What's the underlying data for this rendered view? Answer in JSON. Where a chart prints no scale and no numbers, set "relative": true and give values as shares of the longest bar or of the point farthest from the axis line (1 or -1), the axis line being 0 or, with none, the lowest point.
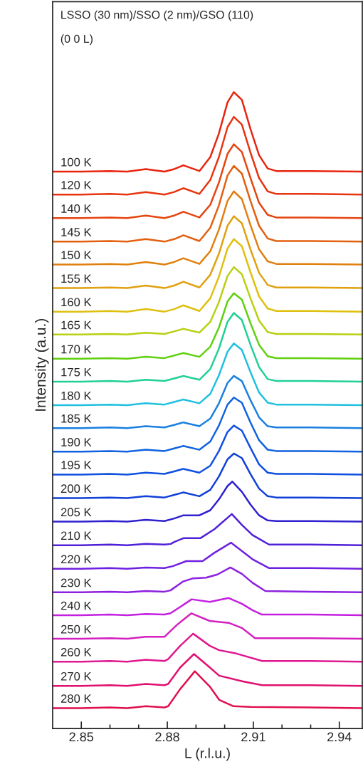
{
  "chart_data": {
    "type": "line",
    "relative": true,
    "title": "LSSO (30 nm)/SSO (2 nm)/GSO (110)",
    "subtitle": "(0 0 L)",
    "xlabel": "L (r.l.u.)",
    "ylabel": "Intensity (a.u.)",
    "xlim": [
      2.84,
      2.948
    ],
    "xticks": [
      2.85,
      {
        "value": 2.86,
        "label": null
      },
      {
        "value": 2.87,
        "label": null
      },
      2.88,
      {
        "value": 2.89,
        "label": null
      },
      {
        "value": 2.9,
        "label": null
      },
      2.91,
      {
        "value": 2.92,
        "label": null
      },
      {
        "value": 2.93,
        "label": null
      },
      2.94
    ],
    "grid": false,
    "line_style": "solid",
    "marker": "none",
    "series": [
      {
        "name": "100 K",
        "color": "#e8250f",
        "x": [
          2.84,
          2.85,
          2.86,
          2.866,
          2.8725,
          2.879,
          2.8824,
          2.8856,
          2.8912,
          2.895,
          2.898,
          2.901,
          2.9032,
          2.906,
          2.909,
          2.912,
          2.915,
          2.918,
          2.93,
          2.948
        ],
        "values": [
          0.875,
          0.875,
          0.876,
          0.875,
          0.879,
          0.875,
          0.879,
          0.885,
          0.876,
          0.898,
          0.935,
          0.984,
          1.0,
          0.988,
          0.942,
          0.901,
          0.88,
          0.876,
          0.876,
          0.875
        ]
      },
      {
        "name": "120 K",
        "color": "#e63510",
        "x": [
          2.84,
          2.85,
          2.86,
          2.866,
          2.8725,
          2.879,
          2.8824,
          2.8856,
          2.8912,
          2.895,
          2.898,
          2.901,
          2.9032,
          2.906,
          2.909,
          2.912,
          2.915,
          2.918,
          2.93,
          2.948
        ],
        "values": [
          0.839,
          0.839,
          0.84,
          0.839,
          0.843,
          0.839,
          0.843,
          0.849,
          0.84,
          0.862,
          0.898,
          0.945,
          0.961,
          0.949,
          0.905,
          0.865,
          0.844,
          0.84,
          0.84,
          0.839
        ]
      },
      {
        "name": "140 K",
        "color": "#e54510",
        "x": [
          2.84,
          2.85,
          2.86,
          2.866,
          2.8725,
          2.879,
          2.8824,
          2.8856,
          2.8912,
          2.895,
          2.898,
          2.901,
          2.9032,
          2.906,
          2.909,
          2.912,
          2.915,
          2.918,
          2.93,
          2.948
        ],
        "values": [
          0.802,
          0.802,
          0.803,
          0.802,
          0.806,
          0.802,
          0.806,
          0.812,
          0.803,
          0.823,
          0.858,
          0.903,
          0.918,
          0.906,
          0.865,
          0.826,
          0.807,
          0.803,
          0.803,
          0.802
        ]
      },
      {
        "name": "145 K",
        "color": "#e2600f",
        "x": [
          2.84,
          2.85,
          2.86,
          2.866,
          2.8725,
          2.879,
          2.8824,
          2.8856,
          2.8912,
          2.895,
          2.898,
          2.901,
          2.9032,
          2.906,
          2.909,
          2.912,
          2.915,
          2.918,
          2.93,
          2.948
        ],
        "values": [
          0.765,
          0.765,
          0.766,
          0.765,
          0.769,
          0.765,
          0.769,
          0.775,
          0.766,
          0.787,
          0.822,
          0.869,
          0.884,
          0.872,
          0.829,
          0.79,
          0.77,
          0.766,
          0.766,
          0.765
        ]
      },
      {
        "name": "150 K",
        "color": "#e0800f",
        "x": [
          2.84,
          2.85,
          2.86,
          2.866,
          2.8725,
          2.879,
          2.8824,
          2.8856,
          2.8912,
          2.895,
          2.898,
          2.901,
          2.9032,
          2.906,
          2.909,
          2.912,
          2.915,
          2.918,
          2.93,
          2.948
        ],
        "values": [
          0.729,
          0.729,
          0.73,
          0.729,
          0.733,
          0.729,
          0.733,
          0.739,
          0.73,
          0.75,
          0.784,
          0.829,
          0.844,
          0.832,
          0.791,
          0.753,
          0.734,
          0.73,
          0.73,
          0.729
        ]
      },
      {
        "name": "155 K",
        "color": "#e0a00f",
        "x": [
          2.84,
          2.85,
          2.86,
          2.866,
          2.8725,
          2.879,
          2.8824,
          2.8856,
          2.8912,
          2.895,
          2.898,
          2.901,
          2.9032,
          2.906,
          2.909,
          2.912,
          2.915,
          2.918,
          2.93,
          2.948
        ],
        "values": [
          0.692,
          0.692,
          0.693,
          0.692,
          0.696,
          0.692,
          0.696,
          0.702,
          0.693,
          0.713,
          0.746,
          0.79,
          0.805,
          0.794,
          0.753,
          0.716,
          0.697,
          0.693,
          0.693,
          0.692
        ]
      },
      {
        "name": "160 K",
        "color": "#dfc010",
        "x": [
          2.84,
          2.85,
          2.86,
          2.866,
          2.8725,
          2.879,
          2.8824,
          2.8856,
          2.8912,
          2.895,
          2.898,
          2.901,
          2.9032,
          2.906,
          2.909,
          2.912,
          2.915,
          2.918,
          2.93,
          2.948
        ],
        "values": [
          0.655,
          0.655,
          0.656,
          0.655,
          0.659,
          0.655,
          0.659,
          0.665,
          0.656,
          0.676,
          0.71,
          0.754,
          0.769,
          0.758,
          0.717,
          0.679,
          0.66,
          0.656,
          0.656,
          0.655
        ]
      },
      {
        "name": "165 K",
        "color": "#b8d010",
        "x": [
          2.84,
          2.85,
          2.86,
          2.866,
          2.8725,
          2.879,
          2.8824,
          2.8856,
          2.8912,
          2.895,
          2.898,
          2.901,
          2.9032,
          2.906,
          2.909,
          2.912,
          2.915,
          2.918,
          2.93,
          2.948
        ],
        "values": [
          0.619,
          0.619,
          0.62,
          0.619,
          0.622,
          0.62,
          0.624,
          0.628,
          0.622,
          0.639,
          0.67,
          0.711,
          0.725,
          0.714,
          0.676,
          0.641,
          0.623,
          0.62,
          0.62,
          0.619
        ]
      },
      {
        "name": "170 K",
        "color": "#60d010",
        "x": [
          2.84,
          2.85,
          2.86,
          2.866,
          2.8725,
          2.879,
          2.8824,
          2.8856,
          2.8912,
          2.895,
          2.898,
          2.901,
          2.9032,
          2.906,
          2.909,
          2.912,
          2.915,
          2.918,
          2.93,
          2.948
        ],
        "values": [
          0.581,
          0.581,
          0.582,
          0.581,
          0.584,
          0.582,
          0.586,
          0.59,
          0.584,
          0.6,
          0.63,
          0.671,
          0.684,
          0.674,
          0.637,
          0.603,
          0.585,
          0.582,
          0.582,
          0.581
        ]
      },
      {
        "name": "175 K",
        "color": "#20d098",
        "x": [
          2.84,
          2.85,
          2.86,
          2.866,
          2.8725,
          2.879,
          2.8824,
          2.8856,
          2.8912,
          2.895,
          2.898,
          2.901,
          2.9032,
          2.906,
          2.909,
          2.912,
          2.915,
          2.918,
          2.93,
          2.948
        ],
        "values": [
          0.545,
          0.545,
          0.546,
          0.545,
          0.548,
          0.546,
          0.55,
          0.554,
          0.548,
          0.565,
          0.597,
          0.639,
          0.653,
          0.642,
          0.603,
          0.568,
          0.549,
          0.546,
          0.546,
          0.545
        ]
      },
      {
        "name": "180 K",
        "color": "#20c0e0",
        "x": [
          2.84,
          2.85,
          2.86,
          2.866,
          2.8725,
          2.879,
          2.8824,
          2.8856,
          2.8912,
          2.895,
          2.898,
          2.901,
          2.9032,
          2.906,
          2.909,
          2.912,
          2.915,
          2.918,
          2.93,
          2.948
        ],
        "values": [
          0.508,
          0.508,
          0.509,
          0.508,
          0.511,
          0.509,
          0.513,
          0.517,
          0.511,
          0.526,
          0.555,
          0.592,
          0.605,
          0.595,
          0.56,
          0.528,
          0.512,
          0.509,
          0.509,
          0.508
        ]
      },
      {
        "name": "185 K",
        "color": "#1a80e0",
        "x": [
          2.84,
          2.85,
          2.86,
          2.866,
          2.8725,
          2.879,
          2.8824,
          2.8856,
          2.8912,
          2.895,
          2.898,
          2.901,
          2.9032,
          2.906,
          2.909,
          2.912,
          2.915,
          2.918,
          2.93,
          2.948
        ],
        "values": [
          0.472,
          0.472,
          0.473,
          0.472,
          0.475,
          0.473,
          0.477,
          0.481,
          0.475,
          0.487,
          0.511,
          0.543,
          0.554,
          0.546,
          0.516,
          0.489,
          0.475,
          0.473,
          0.473,
          0.472
        ]
      },
      {
        "name": "190 K",
        "color": "#1062e0",
        "x": [
          2.84,
          2.85,
          2.86,
          2.866,
          2.8725,
          2.879,
          2.8824,
          2.8856,
          2.8912,
          2.895,
          2.898,
          2.901,
          2.9032,
          2.906,
          2.909,
          2.912,
          2.915,
          2.918,
          2.93,
          2.948
        ],
        "values": [
          0.435,
          0.435,
          0.436,
          0.435,
          0.438,
          0.436,
          0.44,
          0.444,
          0.438,
          0.451,
          0.476,
          0.509,
          0.52,
          0.512,
          0.481,
          0.453,
          0.438,
          0.436,
          0.436,
          0.435
        ]
      },
      {
        "name": "195 K",
        "color": "#1050e0",
        "x": [
          2.84,
          2.85,
          2.86,
          2.866,
          2.8725,
          2.879,
          2.8824,
          2.8856,
          2.8912,
          2.895,
          2.898,
          2.901,
          2.9032,
          2.906,
          2.909,
          2.912,
          2.915,
          2.918,
          2.93,
          2.948
        ],
        "values": [
          0.399,
          0.399,
          0.4,
          0.399,
          0.402,
          0.4,
          0.404,
          0.408,
          0.402,
          0.413,
          0.436,
          0.466,
          0.476,
          0.468,
          0.441,
          0.415,
          0.402,
          0.4,
          0.4,
          0.399
        ]
      },
      {
        "name": "200 K",
        "color": "#1040d8",
        "x": [
          2.84,
          2.85,
          2.86,
          2.866,
          2.8725,
          2.879,
          2.8824,
          2.8856,
          2.8912,
          2.895,
          2.898,
          2.901,
          2.9032,
          2.906,
          2.909,
          2.912,
          2.915,
          2.918,
          2.93,
          2.948
        ],
        "values": [
          0.362,
          0.362,
          0.363,
          0.362,
          0.365,
          0.363,
          0.367,
          0.371,
          0.365,
          0.375,
          0.396,
          0.423,
          0.432,
          0.425,
          0.4,
          0.377,
          0.365,
          0.363,
          0.363,
          0.362
        ]
      },
      {
        "name": "205 K",
        "color": "#3020d0",
        "x": [
          2.84,
          2.85,
          2.86,
          2.866,
          2.8725,
          2.879,
          2.8824,
          2.8856,
          2.8912,
          2.895,
          2.898,
          2.901,
          2.9027,
          2.906,
          2.909,
          2.912,
          2.915,
          2.918,
          2.93,
          2.948
        ],
        "values": [
          0.325,
          0.325,
          0.326,
          0.325,
          0.328,
          0.326,
          0.33,
          0.335,
          0.335,
          0.343,
          0.36,
          0.381,
          0.388,
          0.372,
          0.352,
          0.335,
          0.327,
          0.326,
          0.326,
          0.325
        ]
      },
      {
        "name": "210 K",
        "color": "#5020d8",
        "x": [
          2.84,
          2.85,
          2.86,
          2.866,
          2.8725,
          2.879,
          2.8812,
          2.8824,
          2.8856,
          2.8915,
          2.8964,
          2.9025,
          2.906,
          2.9097,
          2.9155,
          2.93,
          2.948
        ],
        "values": [
          0.288,
          0.288,
          0.289,
          0.288,
          0.29,
          0.289,
          0.29,
          0.293,
          0.299,
          0.299,
          0.313,
          0.337,
          0.32,
          0.304,
          0.289,
          0.289,
          0.288
        ]
      },
      {
        "name": "220 K",
        "color": "#7020e0",
        "x": [
          2.84,
          2.85,
          2.86,
          2.866,
          2.8725,
          2.879,
          2.8819,
          2.8866,
          2.8923,
          2.8964,
          2.9022,
          2.906,
          2.9097,
          2.9155,
          2.93,
          2.948
        ],
        "values": [
          0.251,
          0.251,
          0.252,
          0.251,
          0.253,
          0.252,
          0.255,
          0.263,
          0.263,
          0.276,
          0.292,
          0.279,
          0.266,
          0.252,
          0.252,
          0.251
        ]
      },
      {
        "name": "230 K",
        "color": "#8c20e0",
        "x": [
          2.84,
          2.85,
          2.86,
          2.866,
          2.8725,
          2.879,
          2.8811,
          2.8855,
          2.889,
          2.8935,
          2.8975,
          2.902,
          2.906,
          2.9097,
          2.9142,
          2.93,
          2.948
        ],
        "values": [
          0.214,
          0.214,
          0.215,
          0.214,
          0.216,
          0.215,
          0.217,
          0.231,
          0.236,
          0.237,
          0.242,
          0.253,
          0.243,
          0.229,
          0.216,
          0.215,
          0.214
        ]
      },
      {
        "name": "240 K",
        "color": "#c420e0",
        "x": [
          2.84,
          2.85,
          2.86,
          2.866,
          2.8725,
          2.879,
          2.8811,
          2.8855,
          2.8885,
          2.8948,
          2.9014,
          2.906,
          2.9097,
          2.913,
          2.93,
          2.948
        ],
        "values": [
          0.178,
          0.178,
          0.179,
          0.178,
          0.18,
          0.179,
          0.181,
          0.194,
          0.203,
          0.199,
          0.205,
          0.196,
          0.186,
          0.179,
          0.179,
          0.178
        ]
      },
      {
        "name": "250 K",
        "color": "#d420c0",
        "x": [
          2.84,
          2.85,
          2.86,
          2.866,
          2.8725,
          2.879,
          2.8834,
          2.8884,
          2.8948,
          2.9014,
          2.906,
          2.9106,
          2.93,
          2.948
        ],
        "values": [
          0.141,
          0.141,
          0.142,
          0.141,
          0.144,
          0.144,
          0.163,
          0.181,
          0.169,
          0.166,
          0.158,
          0.142,
          0.142,
          0.141
        ]
      },
      {
        "name": "260 K",
        "color": "#e01890",
        "x": [
          2.84,
          2.85,
          2.86,
          2.866,
          2.8725,
          2.879,
          2.8803,
          2.8845,
          2.889,
          2.8948,
          2.8981,
          2.9039,
          2.9131,
          2.93,
          2.948
        ],
        "values": [
          0.105,
          0.105,
          0.106,
          0.105,
          0.108,
          0.106,
          0.109,
          0.13,
          0.149,
          0.13,
          0.123,
          0.118,
          0.106,
          0.106,
          0.105
        ]
      },
      {
        "name": "270 K",
        "color": "#e01070",
        "x": [
          2.84,
          2.85,
          2.86,
          2.866,
          2.8725,
          2.879,
          2.8803,
          2.8845,
          2.8893,
          2.8948,
          2.8981,
          2.9064,
          2.9131,
          2.93,
          2.948
        ],
        "values": [
          0.067,
          0.067,
          0.068,
          0.067,
          0.07,
          0.068,
          0.07,
          0.096,
          0.117,
          0.096,
          0.083,
          0.074,
          0.068,
          0.068,
          0.067
        ]
      },
      {
        "name": "280 K",
        "color": "#e01050",
        "x": [
          2.84,
          2.85,
          2.86,
          2.866,
          2.8725,
          2.879,
          2.8803,
          2.8845,
          2.8896,
          2.8948,
          2.8981,
          2.9031,
          2.909,
          2.93,
          2.948
        ],
        "values": [
          0.032,
          0.032,
          0.033,
          0.032,
          0.035,
          0.033,
          0.035,
          0.062,
          0.09,
          0.066,
          0.045,
          0.035,
          0.034,
          0.033,
          0.032
        ]
      }
    ]
  }
}
